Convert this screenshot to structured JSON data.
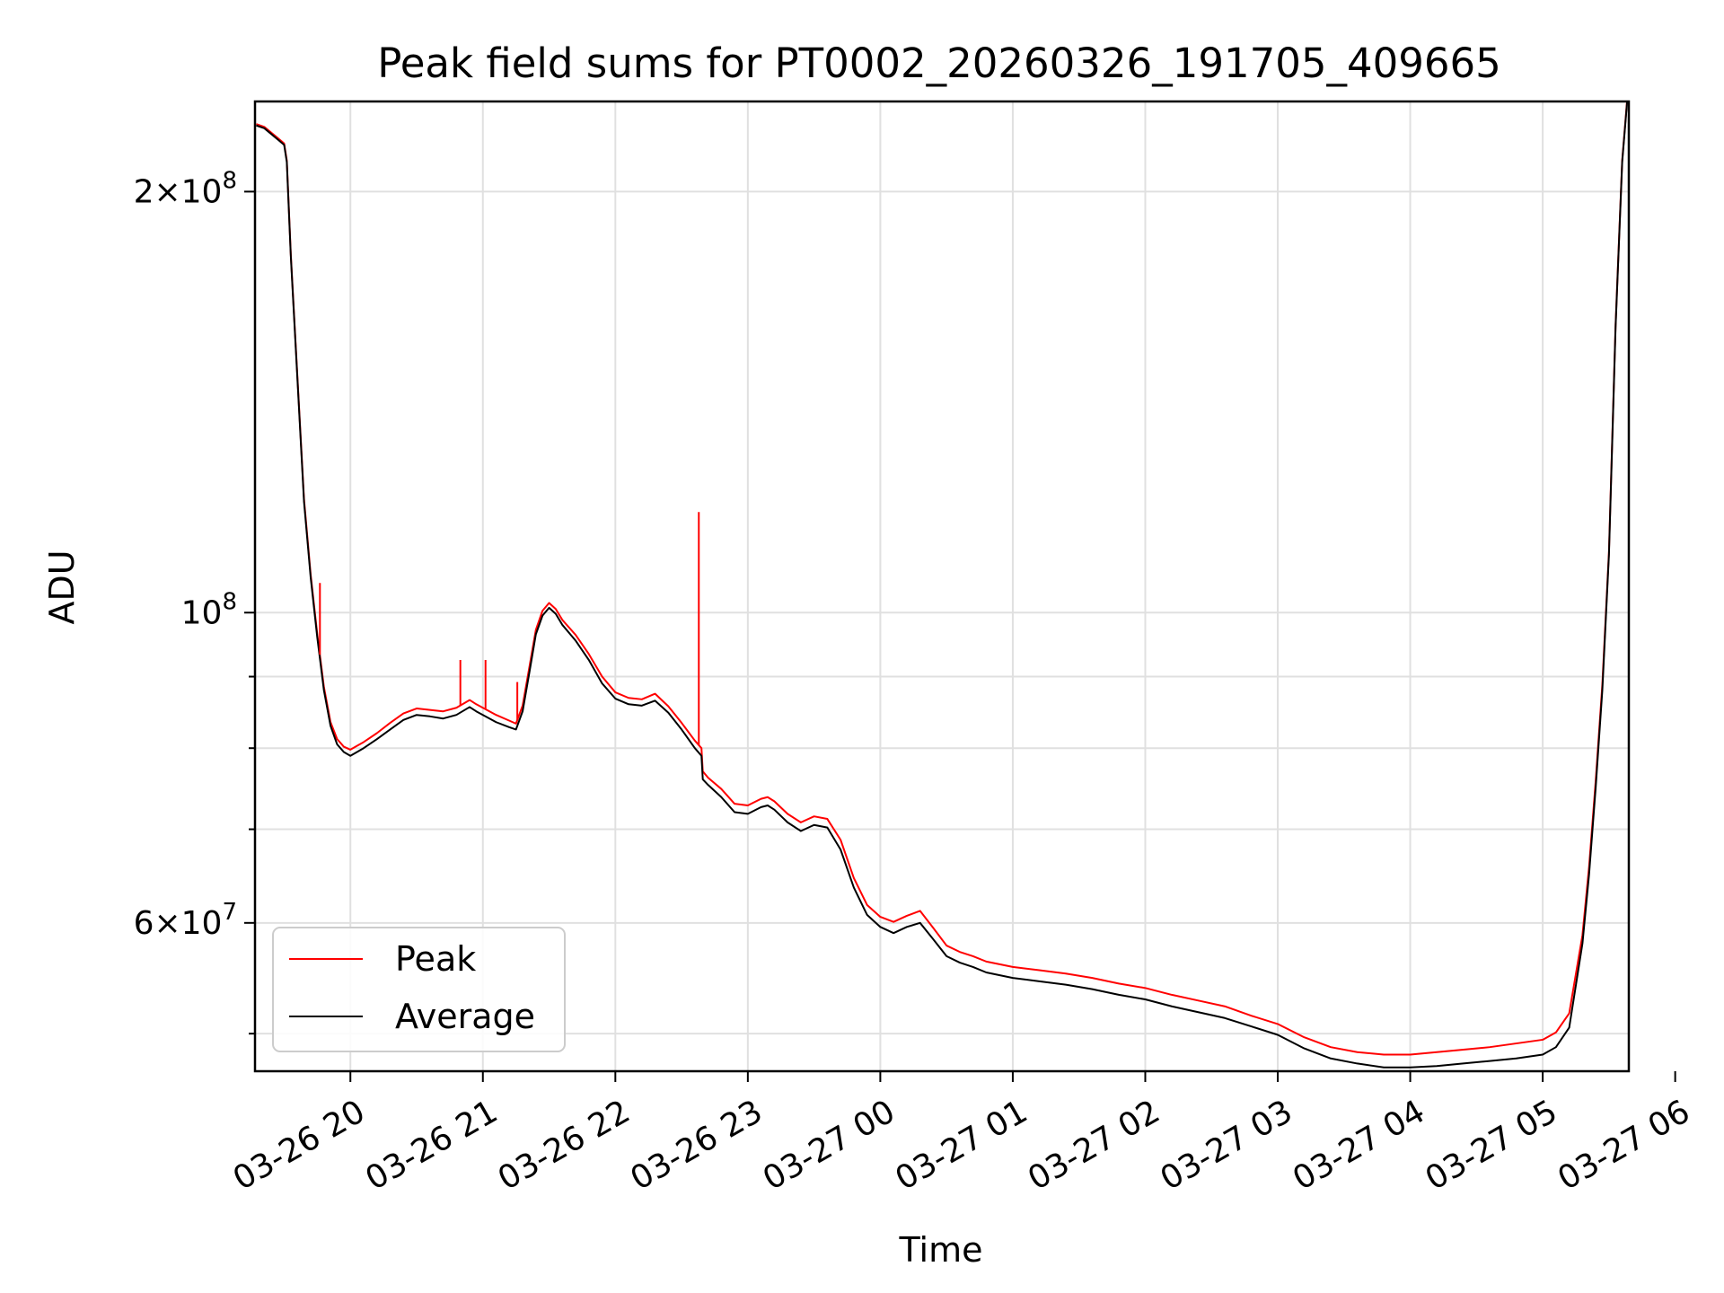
{
  "chart_data": {
    "type": "line",
    "title": "Peak field sums for PT0002_20260326_191705_409665",
    "xlabel": "Time",
    "ylabel": "ADU",
    "y_scale": "log",
    "ylim": [
      47000000,
      232000000
    ],
    "xlim": [
      -0.72,
      9.65
    ],
    "grid": true,
    "legend_position": "lower-left",
    "x_ticks": [
      {
        "value": 0,
        "label": "03-26 20"
      },
      {
        "value": 1,
        "label": "03-26 21"
      },
      {
        "value": 2,
        "label": "03-26 22"
      },
      {
        "value": 3,
        "label": "03-26 23"
      },
      {
        "value": 4,
        "label": "03-27 00"
      },
      {
        "value": 5,
        "label": "03-27 01"
      },
      {
        "value": 6,
        "label": "03-27 02"
      },
      {
        "value": 7,
        "label": "03-27 03"
      },
      {
        "value": 8,
        "label": "03-27 04"
      },
      {
        "value": 9,
        "label": "03-27 05"
      },
      {
        "value": 10,
        "label": "03-27 06"
      }
    ],
    "y_major_ticks": [
      {
        "value": 60000000,
        "mant": "6",
        "exp": "7"
      },
      {
        "value": 100000000,
        "mant": "",
        "exp": "8"
      },
      {
        "value": 200000000,
        "mant": "2",
        "exp": "8"
      }
    ],
    "y_minor_ticks": [
      50000000,
      70000000,
      80000000,
      90000000,
      300000000
    ],
    "x_unit_note": "x values are hours after 03-26 20:00",
    "series": [
      {
        "name": "Average",
        "color": "#000000",
        "x": [
          -0.71,
          -0.65,
          -0.6,
          -0.55,
          -0.5,
          -0.48,
          -0.45,
          -0.4,
          -0.35,
          -0.3,
          -0.25,
          -0.2,
          -0.15,
          -0.1,
          -0.05,
          0.0,
          0.05,
          0.1,
          0.2,
          0.3,
          0.4,
          0.5,
          0.6,
          0.7,
          0.8,
          0.9,
          0.95,
          1.0,
          1.1,
          1.2,
          1.25,
          1.3,
          1.35,
          1.4,
          1.45,
          1.5,
          1.55,
          1.6,
          1.7,
          1.8,
          1.9,
          2.0,
          2.1,
          2.2,
          2.3,
          2.4,
          2.5,
          2.6,
          2.65,
          2.66,
          2.7,
          2.8,
          2.9,
          3.0,
          3.1,
          3.15,
          3.2,
          3.3,
          3.4,
          3.5,
          3.6,
          3.7,
          3.8,
          3.9,
          4.0,
          4.1,
          4.2,
          4.3,
          4.4,
          4.5,
          4.6,
          4.7,
          4.8,
          5.0,
          5.2,
          5.4,
          5.6,
          5.8,
          6.0,
          6.2,
          6.4,
          6.6,
          6.8,
          7.0,
          7.2,
          7.4,
          7.6,
          7.8,
          8.0,
          8.2,
          8.4,
          8.6,
          8.8,
          9.0,
          9.1,
          9.2,
          9.3,
          9.35,
          9.4,
          9.45,
          9.5,
          9.55,
          9.6,
          9.65
        ],
        "values": [
          223000000,
          222000000,
          220000000,
          218000000,
          216000000,
          210000000,
          180000000,
          147000000,
          120000000,
          106000000,
          96000000,
          88000000,
          83000000,
          80500000,
          79500000,
          79000000,
          79500000,
          80000000,
          81200000,
          82500000,
          83800000,
          84500000,
          84300000,
          84000000,
          84500000,
          85600000,
          85000000,
          84500000,
          83500000,
          82800000,
          82500000,
          85000000,
          90500000,
          96500000,
          99500000,
          100800000,
          99800000,
          98000000,
          95500000,
          92500000,
          89000000,
          86800000,
          86000000,
          85800000,
          86500000,
          84800000,
          82500000,
          80000000,
          79000000,
          76000000,
          75300000,
          73800000,
          72000000,
          71800000,
          72600000,
          72800000,
          72300000,
          70800000,
          69800000,
          70500000,
          70200000,
          67700000,
          63600000,
          60800000,
          59600000,
          59000000,
          59600000,
          60000000,
          58400000,
          56800000,
          56200000,
          55800000,
          55300000,
          54800000,
          54500000,
          54200000,
          53800000,
          53300000,
          52900000,
          52300000,
          51800000,
          51300000,
          50600000,
          49900000,
          48800000,
          48000000,
          47600000,
          47300000,
          47300000,
          47400000,
          47600000,
          47800000,
          48000000,
          48300000,
          48900000,
          50500000,
          58000000,
          65000000,
          75000000,
          88000000,
          110000000,
          160000000,
          210000000,
          240000000
        ]
      },
      {
        "name": "Peak",
        "color": "#ff0000",
        "x": [
          -0.71,
          -0.65,
          -0.6,
          -0.55,
          -0.5,
          -0.48,
          -0.45,
          -0.4,
          -0.35,
          -0.3,
          -0.25,
          -0.2,
          -0.15,
          -0.1,
          -0.05,
          0.0,
          0.05,
          0.1,
          0.2,
          0.3,
          0.4,
          0.5,
          0.6,
          0.7,
          0.8,
          0.9,
          0.95,
          1.0,
          1.1,
          1.2,
          1.25,
          1.3,
          1.35,
          1.4,
          1.45,
          1.5,
          1.55,
          1.6,
          1.7,
          1.8,
          1.9,
          2.0,
          2.1,
          2.2,
          2.3,
          2.4,
          2.5,
          2.6,
          2.65,
          2.66,
          2.7,
          2.8,
          2.9,
          3.0,
          3.1,
          3.15,
          3.2,
          3.3,
          3.4,
          3.5,
          3.6,
          3.7,
          3.8,
          3.9,
          4.0,
          4.1,
          4.2,
          4.3,
          4.4,
          4.5,
          4.6,
          4.7,
          4.8,
          5.0,
          5.2,
          5.4,
          5.6,
          5.8,
          6.0,
          6.2,
          6.4,
          6.6,
          6.8,
          7.0,
          7.2,
          7.4,
          7.6,
          7.8,
          8.0,
          8.2,
          8.4,
          8.6,
          8.8,
          9.0,
          9.1,
          9.2,
          9.3,
          9.35,
          9.4,
          9.45,
          9.5,
          9.55,
          9.6,
          9.65
        ],
        "values": [
          223500000,
          222500000,
          220500000,
          218500000,
          216500000,
          210500000,
          180500000,
          147500000,
          120500000,
          106500000,
          96500000,
          88500000,
          83500000,
          81200000,
          80200000,
          79800000,
          80300000,
          80800000,
          82000000,
          83400000,
          84700000,
          85400000,
          85200000,
          85000000,
          85500000,
          86600000,
          86000000,
          85500000,
          84500000,
          83700000,
          83300000,
          85800000,
          91300000,
          97200000,
          100300000,
          101600000,
          100600000,
          98800000,
          96400000,
          93400000,
          90000000,
          87700000,
          86900000,
          86700000,
          87500000,
          85700000,
          83400000,
          81000000,
          80000000,
          77000000,
          76200000,
          74800000,
          73000000,
          72800000,
          73600000,
          73800000,
          73300000,
          71800000,
          70800000,
          71500000,
          71200000,
          68800000,
          64600000,
          61800000,
          60600000,
          60100000,
          60700000,
          61200000,
          59500000,
          57800000,
          57200000,
          56800000,
          56300000,
          55800000,
          55500000,
          55200000,
          54800000,
          54300000,
          53900000,
          53300000,
          52800000,
          52300000,
          51500000,
          50800000,
          49700000,
          48900000,
          48500000,
          48300000,
          48300000,
          48500000,
          48700000,
          48900000,
          49200000,
          49500000,
          50100000,
          51700000,
          58800000,
          65800000,
          75800000,
          88800000,
          110500000,
          160500000,
          210500000,
          240500000
        ]
      }
    ],
    "spikes": [
      {
        "series": "Peak",
        "x": -0.23,
        "value": 105000000
      },
      {
        "series": "Peak",
        "x": 0.83,
        "value": 92500000
      },
      {
        "series": "Peak",
        "x": 1.02,
        "value": 92500000
      },
      {
        "series": "Peak",
        "x": 1.26,
        "value": 89200000
      },
      {
        "series": "Peak",
        "x": 2.63,
        "value": 118000000
      }
    ]
  }
}
